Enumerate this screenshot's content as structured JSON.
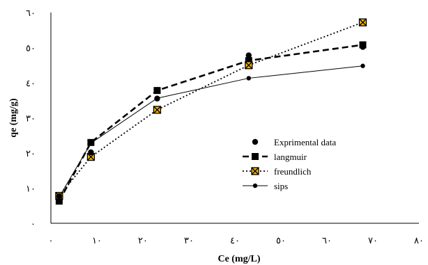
{
  "chart_data": {
    "type": "line",
    "title": "",
    "xlabel": "Ce (mg/L)",
    "ylabel": "qe (mg/g)",
    "xlim": [
      0,
      80
    ],
    "ylim": [
      0,
      60
    ],
    "xticks": [
      0,
      10,
      20,
      30,
      40,
      50,
      60,
      70,
      80
    ],
    "yticks": [
      0,
      10,
      20,
      30,
      40,
      50,
      60
    ],
    "xtick_labels": [
      "٠",
      "١٠",
      "٢٠",
      "٣٠",
      "٤٠",
      "٥٠",
      "٦٠",
      "٧٠",
      "٨٠"
    ],
    "ytick_labels": [
      "٠",
      "١٠",
      "٢٠",
      "٣٠",
      "٤٠",
      "٥٠",
      "٦٠"
    ],
    "grid": false,
    "legend_position": "right",
    "series": [
      {
        "name": "Exprimental data",
        "style": "markers",
        "color": "#000000",
        "x": [
          1.8,
          8.7,
          23.1,
          43.0,
          67.8
        ],
        "y": [
          7.7,
          20.2,
          35.5,
          47.8,
          50.2
        ]
      },
      {
        "name": "langmuir",
        "style": "dashed-square",
        "color": "#000000",
        "x": [
          1.8,
          8.7,
          23.1,
          43.0,
          67.8
        ],
        "y": [
          6.3,
          23.0,
          37.8,
          46.3,
          50.8
        ]
      },
      {
        "name": "freundlich",
        "style": "dotted-xbox",
        "color": "#000000",
        "marker_fill": "#f2b600",
        "x": [
          1.8,
          8.7,
          23.1,
          43.0,
          67.8
        ],
        "y": [
          7.8,
          18.9,
          32.3,
          45.0,
          57.2
        ]
      },
      {
        "name": "sips",
        "style": "solid-dot",
        "color": "#000000",
        "x": [
          1.8,
          8.7,
          23.1,
          43.0,
          67.8
        ],
        "y": [
          7.5,
          22.8,
          35.6,
          41.3,
          44.8
        ]
      }
    ]
  }
}
